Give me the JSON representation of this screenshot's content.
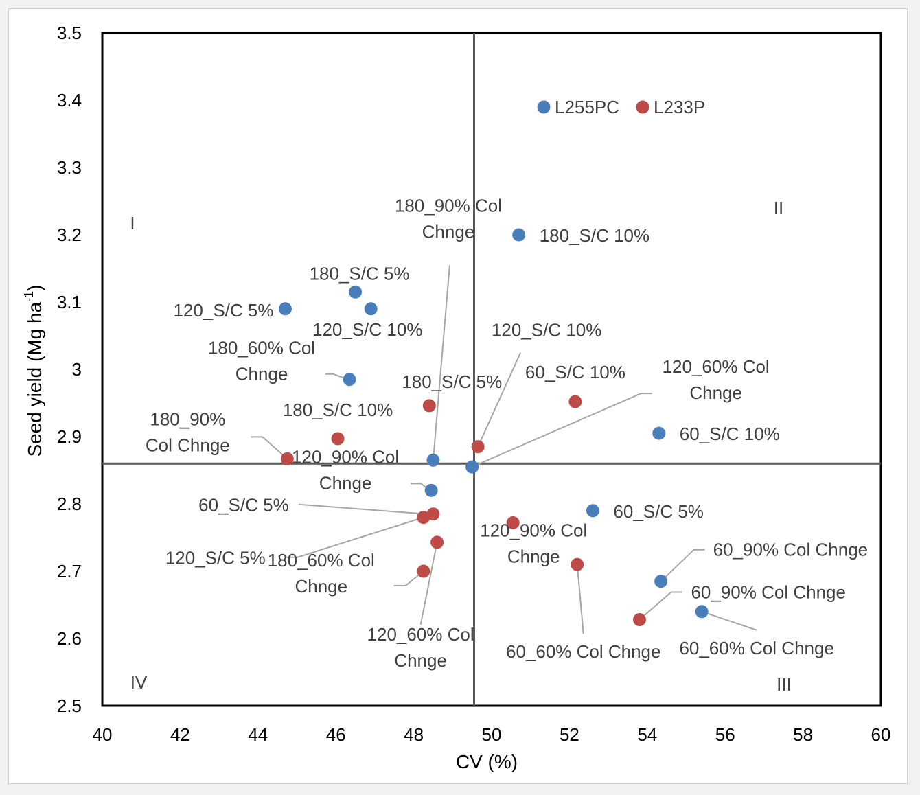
{
  "chart_data": {
    "type": "scatter",
    "xlabel": "CV (%)",
    "ylabel": "Seed yield (Mg ha-1)",
    "ylabel_main": "Seed yield (Mg ha",
    "ylabel_sup": "-1",
    "ylabel_end": ")",
    "xlim": [
      40,
      60
    ],
    "ylim": [
      2.5,
      3.5
    ],
    "x_ticks": [
      40,
      42,
      44,
      46,
      48,
      50,
      52,
      54,
      56,
      58,
      60
    ],
    "y_ticks": [
      "2.5",
      "2.6",
      "2.7",
      "2.8",
      "2.9",
      "3",
      "3.1",
      "3.2",
      "3.3",
      "3.4",
      "3.5"
    ],
    "mean_x": 49.55,
    "mean_y": 2.86,
    "grid": false,
    "legend": {
      "placement": "top-center",
      "entries": [
        {
          "name": "L255PC",
          "color": "#4a7ebb"
        },
        {
          "name": "L233P",
          "color": "#be4b48"
        }
      ]
    },
    "quadrants": [
      "I",
      "II",
      "III",
      "IV"
    ],
    "series": [
      {
        "name": "L255PC",
        "color": "#4a7ebb",
        "points": [
          {
            "x": 50.7,
            "y": 3.2,
            "label": [
              "180_S/C 10%"
            ]
          },
          {
            "x": 46.5,
            "y": 3.115,
            "label": [
              "180_S/C 5%"
            ]
          },
          {
            "x": 46.9,
            "y": 3.09,
            "label": [
              "120_S/C 10%"
            ]
          },
          {
            "x": 44.7,
            "y": 3.09,
            "label": [
              "120_S/C 5%"
            ]
          },
          {
            "x": 46.35,
            "y": 2.985,
            "label": [
              "180_60% Col",
              "Chnge"
            ]
          },
          {
            "x": 54.3,
            "y": 2.905,
            "label": [
              "60_S/C 10%"
            ]
          },
          {
            "x": 48.5,
            "y": 2.865,
            "label": [
              "180_90% Col",
              "Chnge"
            ]
          },
          {
            "x": 49.5,
            "y": 2.855,
            "label": [
              "120_60% Col",
              "Chnge"
            ]
          },
          {
            "x": 48.45,
            "y": 2.82,
            "label": [
              "120_90% Col",
              "Chnge"
            ]
          },
          {
            "x": 52.6,
            "y": 2.79,
            "label": [
              "60_S/C 5%"
            ]
          },
          {
            "x": 54.35,
            "y": 2.685,
            "label": [
              "60_90% Col Chnge"
            ]
          },
          {
            "x": 55.4,
            "y": 2.64,
            "label": [
              "60_60% Col Chnge"
            ]
          }
        ]
      },
      {
        "name": "L233P",
        "color": "#be4b48",
        "points": [
          {
            "x": 52.15,
            "y": 2.952,
            "label": [
              "60_S/C 10%"
            ]
          },
          {
            "x": 48.4,
            "y": 2.946,
            "label": [
              "180_S/C 5%"
            ]
          },
          {
            "x": 46.05,
            "y": 2.897,
            "label": [
              "180_S/C 10%"
            ]
          },
          {
            "x": 49.65,
            "y": 2.885,
            "label": [
              "120_S/C 10%"
            ]
          },
          {
            "x": 44.75,
            "y": 2.867,
            "label": [
              "180_90%",
              "Col Chnge"
            ]
          },
          {
            "x": 48.5,
            "y": 2.785,
            "label": [
              "60_S/C 5%"
            ]
          },
          {
            "x": 48.25,
            "y": 2.78,
            "label": [
              "120_S/C 5%"
            ]
          },
          {
            "x": 50.55,
            "y": 2.772,
            "label": [
              "120_90% Col",
              "Chnge"
            ]
          },
          {
            "x": 48.6,
            "y": 2.743,
            "label": [
              "120_60% Col",
              "Chnge"
            ]
          },
          {
            "x": 52.2,
            "y": 2.71,
            "label": [
              "60_60% Col Chnge"
            ]
          },
          {
            "x": 48.25,
            "y": 2.7,
            "label": [
              "180_60% Col",
              "Chnge"
            ]
          },
          {
            "x": 53.8,
            "y": 2.628,
            "label": [
              "60_90% Col Chnge"
            ]
          }
        ]
      }
    ]
  }
}
